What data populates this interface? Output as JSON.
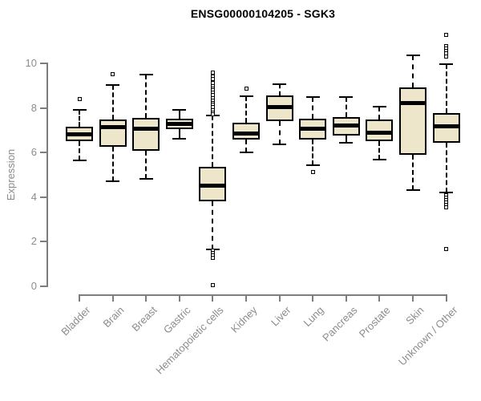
{
  "page": {
    "background": "#ffffff"
  },
  "chart_data": {
    "type": "boxplot",
    "title": "ENSG00000104205 - SGK3",
    "ylabel": "Expression",
    "xlabel": "",
    "ylim": [
      0,
      11.5
    ],
    "yticks": [
      0,
      2,
      4,
      6,
      8,
      10
    ],
    "grid": false,
    "legend": false,
    "colors": {
      "box_fill": "#EDE6CB",
      "box_border": "#000000",
      "median": "#000000",
      "axis": "#7d7d7d",
      "tick_label": "#8c8c8c",
      "title": "#000000"
    },
    "categories": [
      "Bladder",
      "Brain",
      "Breast",
      "Gastric",
      "Hematopoietic cells",
      "Kidney",
      "Liver",
      "Lung",
      "Pancreas",
      "Prostate",
      "Skin",
      "Unknown / Other"
    ],
    "boxes": [
      {
        "label": "Bladder",
        "whisker_low": 5.65,
        "q1": 6.5,
        "median": 6.82,
        "q3": 7.17,
        "whisker_high": 7.9,
        "outliers": [
          8.4
        ]
      },
      {
        "label": "Brain",
        "whisker_low": 4.72,
        "q1": 6.27,
        "median": 7.15,
        "q3": 7.47,
        "whisker_high": 9.03,
        "outliers": [
          9.53
        ]
      },
      {
        "label": "Breast",
        "whisker_low": 4.83,
        "q1": 6.07,
        "median": 7.08,
        "q3": 7.54,
        "whisker_high": 9.5,
        "outliers": []
      },
      {
        "label": "Gastric",
        "whisker_low": 6.6,
        "q1": 7.05,
        "median": 7.28,
        "q3": 7.5,
        "whisker_high": 7.9,
        "outliers": []
      },
      {
        "label": "Hematopoietic cells",
        "whisker_low": 1.65,
        "q1": 3.81,
        "median": 4.52,
        "q3": 5.35,
        "whisker_high": 7.65,
        "outliers": [
          9.6,
          9.42,
          9.28,
          9.13,
          8.99,
          8.88,
          8.78,
          8.67,
          8.56,
          8.45,
          8.34,
          8.23,
          8.13,
          8.02,
          7.91,
          7.8,
          7.7,
          1.58,
          1.5,
          1.38,
          1.26,
          0.06
        ]
      },
      {
        "label": "Kidney",
        "whisker_low": 6.0,
        "q1": 6.58,
        "median": 6.86,
        "q3": 7.35,
        "whisker_high": 8.53,
        "outliers": [
          8.85
        ]
      },
      {
        "label": "Liver",
        "whisker_low": 6.36,
        "q1": 7.42,
        "median": 8.03,
        "q3": 8.55,
        "whisker_high": 9.05,
        "outliers": []
      },
      {
        "label": "Lung",
        "whisker_low": 5.43,
        "q1": 6.58,
        "median": 7.08,
        "q3": 7.5,
        "whisker_high": 8.49,
        "outliers": [
          5.12
        ]
      },
      {
        "label": "Pancreas",
        "whisker_low": 6.45,
        "q1": 6.75,
        "median": 7.2,
        "q3": 7.6,
        "whisker_high": 8.5,
        "outliers": []
      },
      {
        "label": "Prostate",
        "whisker_low": 5.67,
        "q1": 6.51,
        "median": 6.87,
        "q3": 7.47,
        "whisker_high": 8.05,
        "outliers": []
      },
      {
        "label": "Skin",
        "whisker_low": 4.32,
        "q1": 5.9,
        "median": 8.2,
        "q3": 8.92,
        "whisker_high": 10.36,
        "outliers": []
      },
      {
        "label": "Unknown / Other",
        "whisker_low": 4.2,
        "q1": 6.45,
        "median": 7.17,
        "q3": 7.77,
        "whisker_high": 9.95,
        "outliers": [
          11.28,
          10.78,
          10.68,
          10.57,
          10.45,
          10.32,
          4.08,
          3.98,
          3.87,
          3.77,
          3.66,
          3.55,
          1.68
        ]
      }
    ]
  }
}
